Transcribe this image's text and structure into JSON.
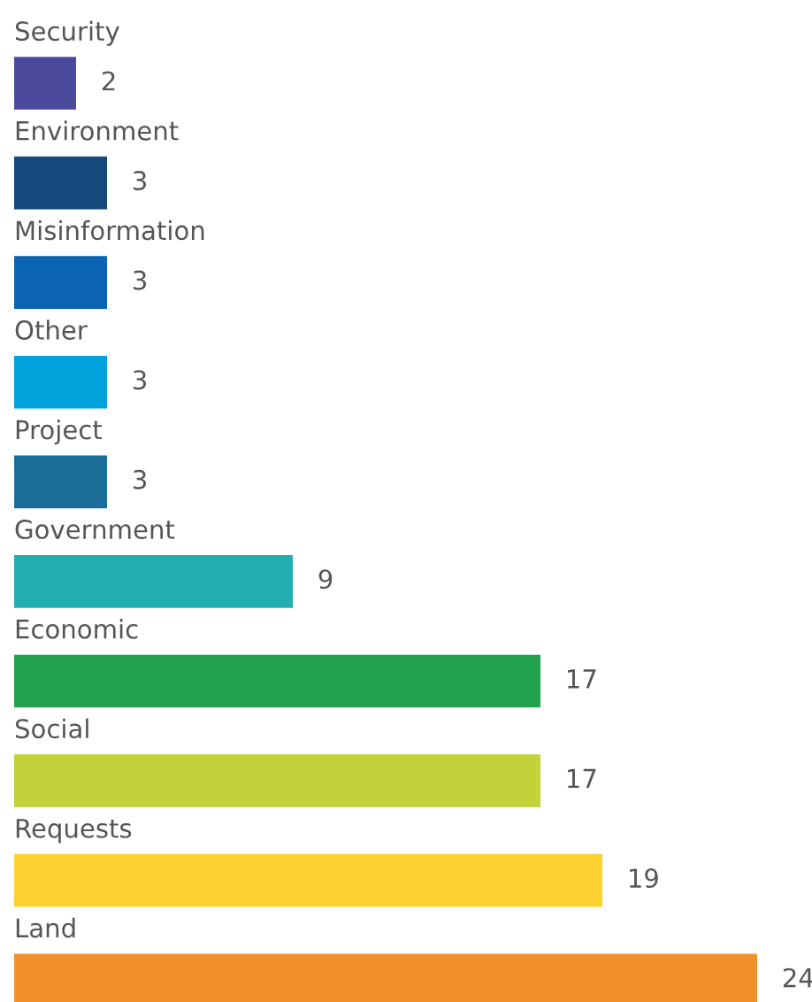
{
  "chart_data": {
    "type": "bar",
    "orientation": "horizontal",
    "categories": [
      "Security",
      "Environment",
      "Misinformation",
      "Other",
      "Project",
      "Government",
      "Economic",
      "Social",
      "Requests",
      "Land"
    ],
    "values": [
      2,
      3,
      3,
      3,
      3,
      9,
      17,
      17,
      19,
      24
    ],
    "colors": [
      "#4b4a9c",
      "#17487e",
      "#0a64b2",
      "#00a2dc",
      "#1a6e98",
      "#22afb1",
      "#22a24f",
      "#c3d23a",
      "#fdd230",
      "#f2912c"
    ],
    "data_labels": true
  }
}
